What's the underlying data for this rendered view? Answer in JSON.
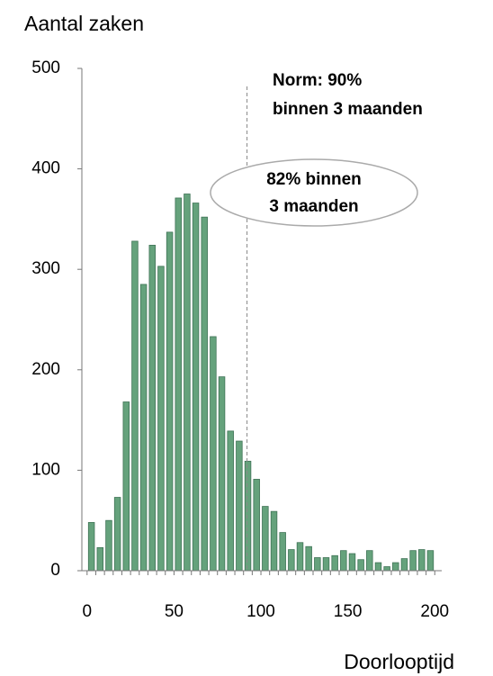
{
  "chart_data": {
    "type": "histogram",
    "title": "Aantal zaken",
    "x_label": "Doorlooptijd",
    "bins": [
      0,
      5,
      10,
      15,
      20,
      25,
      30,
      35,
      40,
      45,
      50,
      55,
      60,
      65,
      70,
      75,
      80,
      85,
      90,
      95,
      100,
      105,
      110,
      115,
      120,
      125,
      130,
      135,
      140,
      145,
      150,
      155,
      160,
      165,
      170,
      175,
      180,
      185,
      190,
      195,
      200
    ],
    "values": [
      48,
      23,
      50,
      73,
      168,
      328,
      285,
      324,
      303,
      337,
      371,
      375,
      366,
      352,
      233,
      193,
      139,
      129,
      109,
      91,
      64,
      59,
      38,
      21,
      28,
      24,
      13,
      13,
      15,
      20,
      17,
      11,
      20,
      8,
      4,
      8,
      12,
      20,
      21,
      20
    ],
    "color": "#65a27c",
    "xlim": [
      -3,
      204
    ],
    "xticks": [
      0,
      50,
      100,
      150,
      200
    ],
    "ylim": [
      0,
      500
    ],
    "yticks": [
      0,
      100,
      200,
      300,
      400,
      500
    ],
    "reference_line_x": 92,
    "annotations": [
      [
        "Norm: 90%",
        "binnen 3 maanden"
      ],
      [
        "82% binnen",
        "3 maanden"
      ]
    ]
  }
}
